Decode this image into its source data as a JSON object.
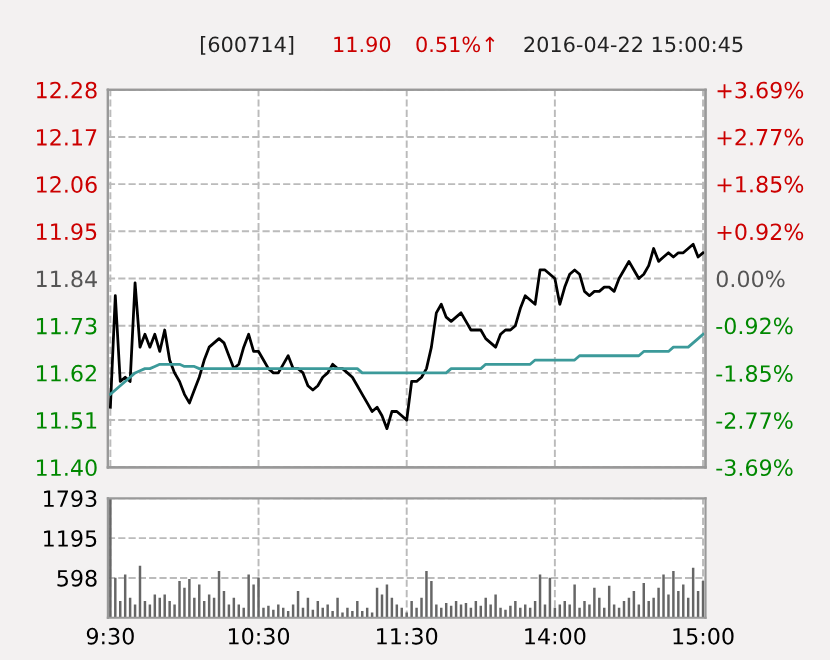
{
  "chart_data": [
    {
      "type": "line",
      "annotations": [
        "[600714]",
        "11.90",
        "0.51%↑",
        "2016-04-22 15:00:45"
      ],
      "categories": [
        null,
        null,
        null,
        null,
        null,
        null,
        null,
        null,
        null,
        null,
        null,
        null,
        null,
        null,
        null,
        null,
        null,
        null,
        null,
        null,
        null,
        null,
        null,
        null,
        null,
        null,
        null,
        null,
        null,
        null,
        null,
        null,
        null,
        null,
        null,
        null,
        null,
        null,
        null,
        null,
        null,
        null,
        null,
        null,
        null,
        null,
        null,
        null,
        null,
        null,
        null,
        null,
        null,
        null,
        null,
        null,
        null,
        null,
        null,
        null,
        null,
        null,
        null,
        null,
        null,
        null,
        null,
        null,
        null,
        null,
        null,
        null,
        null,
        null,
        null,
        null,
        null,
        null,
        null,
        null,
        null,
        null,
        null,
        null,
        null,
        null,
        null,
        null,
        null,
        null,
        null,
        null,
        null,
        null,
        null,
        null,
        null,
        null,
        null,
        null,
        null,
        null,
        null,
        null,
        null,
        null,
        null,
        null,
        null,
        null,
        null,
        null,
        null,
        null,
        null,
        null,
        null,
        null,
        null,
        null,
        null
      ],
      "grid": true,
      "line_style": "solid",
      "ylim": [
        11.4,
        12.28
      ],
      "yticks": [
        {
          "value": 11.4,
          "label": "11.40"
        },
        11.51,
        11.62,
        11.73,
        11.84,
        11.95,
        12.06,
        12.17,
        12.28
      ],
      "y2lim": [
        -3.69,
        3.69
      ],
      "y2ticks": [
        {
          "value": -3.69,
          "label": "-3.69%"
        },
        {
          "value": -2.77,
          "label": "-2.77%"
        },
        {
          "value": -1.85,
          "label": "-1.85%"
        },
        {
          "value": -0.92,
          "label": "-0.92%"
        },
        {
          "value": 0,
          "label": "0.00%"
        },
        {
          "value": 0.92,
          "label": "+0.92%"
        },
        {
          "value": 1.85,
          "label": "+1.85%"
        },
        {
          "value": 2.77,
          "label": "+2.77%"
        },
        {
          "value": 3.69,
          "label": "+3.69%"
        }
      ],
      "series": [
        {
          "color": "#000000",
          "values": [
            11.54,
            11.8,
            11.6,
            11.61,
            11.6,
            11.83,
            11.68,
            11.71,
            11.68,
            11.71,
            11.67,
            11.72,
            11.65,
            11.62,
            11.6,
            11.57,
            11.55,
            11.58,
            11.61,
            11.65,
            11.68,
            11.69,
            11.7,
            11.69,
            11.66,
            11.63,
            11.64,
            11.68,
            11.71,
            11.67,
            11.67,
            11.65,
            11.63,
            11.62,
            11.62,
            11.64,
            11.66,
            11.63,
            11.63,
            11.62,
            11.59,
            11.58,
            11.59,
            11.61,
            11.62,
            11.64,
            11.63,
            11.63,
            11.62,
            11.61,
            11.59,
            11.57,
            11.55,
            11.53,
            11.54,
            11.52,
            11.49,
            11.53,
            11.53,
            11.52,
            11.51,
            11.6,
            11.6,
            11.61,
            11.63,
            11.68,
            11.76,
            11.78,
            11.75,
            11.74,
            11.75,
            11.76,
            11.74,
            11.72,
            11.72,
            11.72,
            11.7,
            11.69,
            11.68,
            11.71,
            11.72,
            11.72,
            11.73,
            11.77,
            11.8,
            11.79,
            11.78,
            11.86,
            11.86,
            11.85,
            11.84,
            11.78,
            11.82,
            11.85,
            11.86,
            11.85,
            11.81,
            11.8,
            11.81,
            11.81,
            11.82,
            11.82,
            11.81,
            11.84,
            11.86,
            11.88,
            11.86,
            11.84,
            11.85,
            11.87,
            11.91,
            11.88,
            11.89,
            11.9,
            11.89,
            11.9,
            11.9,
            11.91,
            11.92,
            11.89,
            11.9
          ]
        },
        {
          "color": "#3c9a9a",
          "values": [
            11.57,
            11.58,
            11.59,
            11.6,
            11.61,
            11.62,
            11.625,
            11.63,
            11.63,
            11.635,
            11.64,
            11.64,
            11.64,
            11.64,
            11.64,
            11.635,
            11.635,
            11.635,
            11.63,
            11.63,
            11.63,
            11.63,
            11.63,
            11.63,
            11.63,
            11.63,
            11.63,
            11.63,
            11.63,
            11.63,
            11.63,
            11.63,
            11.63,
            11.63,
            11.63,
            11.63,
            11.63,
            11.63,
            11.63,
            11.63,
            11.63,
            11.63,
            11.63,
            11.63,
            11.63,
            11.63,
            11.63,
            11.63,
            11.63,
            11.63,
            11.63,
            11.62,
            11.62,
            11.62,
            11.62,
            11.62,
            11.62,
            11.62,
            11.62,
            11.62,
            11.62,
            11.62,
            11.62,
            11.62,
            11.62,
            11.62,
            11.62,
            11.62,
            11.62,
            11.63,
            11.63,
            11.63,
            11.63,
            11.63,
            11.63,
            11.63,
            11.64,
            11.64,
            11.64,
            11.64,
            11.64,
            11.64,
            11.64,
            11.64,
            11.64,
            11.64,
            11.65,
            11.65,
            11.65,
            11.65,
            11.65,
            11.65,
            11.65,
            11.65,
            11.65,
            11.66,
            11.66,
            11.66,
            11.66,
            11.66,
            11.66,
            11.66,
            11.66,
            11.66,
            11.66,
            11.66,
            11.66,
            11.66,
            11.67,
            11.67,
            11.67,
            11.67,
            11.67,
            11.67,
            11.68,
            11.68,
            11.68,
            11.68,
            11.69,
            11.7,
            11.71
          ]
        }
      ]
    },
    {
      "type": "bar",
      "grid": true,
      "categories": [
        "9:30",
        null,
        null,
        null,
        null,
        null,
        null,
        null,
        null,
        null,
        null,
        null,
        null,
        null,
        null,
        null,
        null,
        null,
        null,
        null,
        null,
        null,
        null,
        null,
        null,
        null,
        null,
        null,
        null,
        null,
        "10:30",
        null,
        null,
        null,
        null,
        null,
        null,
        null,
        null,
        null,
        null,
        null,
        null,
        null,
        null,
        null,
        null,
        null,
        null,
        null,
        null,
        null,
        null,
        null,
        null,
        null,
        null,
        null,
        null,
        null,
        "11:30",
        null,
        null,
        null,
        null,
        null,
        null,
        null,
        null,
        null,
        null,
        null,
        null,
        null,
        null,
        null,
        null,
        null,
        null,
        null,
        null,
        null,
        null,
        null,
        null,
        null,
        null,
        null,
        null,
        null,
        "14:00",
        null,
        null,
        null,
        null,
        null,
        null,
        null,
        null,
        null,
        null,
        null,
        null,
        null,
        null,
        null,
        null,
        null,
        null,
        null,
        null,
        null,
        null,
        null,
        null,
        null,
        null,
        null,
        null,
        null,
        "15:00"
      ],
      "ylim": [
        0,
        1793
      ],
      "yticks": [
        598,
        1195,
        1793
      ],
      "series": [
        {
          "color": "#666666",
          "values": [
            1790,
            600,
            250,
            650,
            300,
            200,
            780,
            250,
            200,
            350,
            300,
            350,
            250,
            200,
            550,
            450,
            580,
            300,
            500,
            250,
            350,
            300,
            700,
            400,
            200,
            300,
            200,
            150,
            650,
            500,
            600,
            150,
            180,
            120,
            200,
            150,
            100,
            200,
            400,
            150,
            300,
            120,
            250,
            150,
            200,
            100,
            300,
            80,
            150,
            100,
            250,
            100,
            150,
            80,
            450,
            350,
            500,
            300,
            200,
            150,
            80,
            250,
            150,
            300,
            700,
            550,
            200,
            150,
            220,
            180,
            250,
            200,
            220,
            150,
            250,
            180,
            300,
            200,
            350,
            150,
            120,
            180,
            250,
            150,
            200,
            150,
            250,
            650,
            200,
            600,
            150,
            200,
            250,
            200,
            500,
            150,
            250,
            200,
            450,
            300,
            150,
            480,
            200,
            150,
            250,
            300,
            400,
            200,
            520,
            250,
            300,
            450,
            650,
            350,
            700,
            400,
            500,
            300,
            750,
            400,
            550
          ]
        }
      ]
    }
  ]
}
